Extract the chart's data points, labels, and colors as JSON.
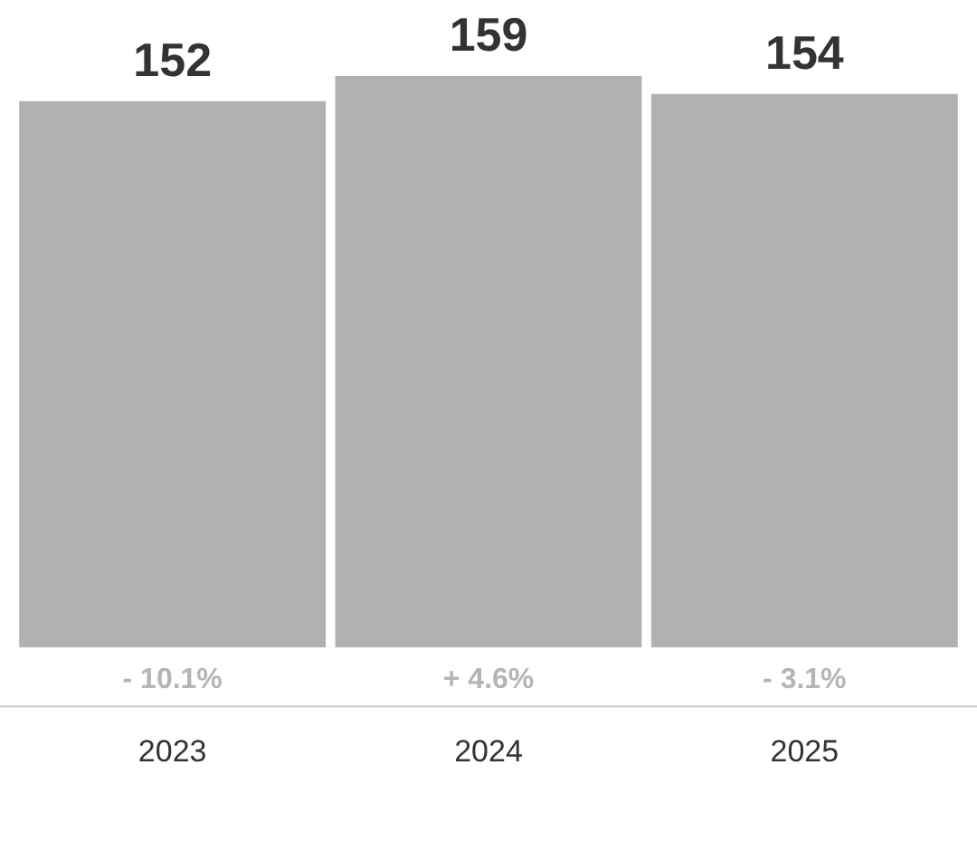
{
  "chart_data": {
    "type": "bar",
    "categories": [
      "2023",
      "2024",
      "2025"
    ],
    "values": [
      152,
      159,
      154
    ],
    "color": "#b0b1b0",
    "data_labels": true,
    "annotations": [
      "- 10.1%",
      "+ 4.6%",
      "- 3.1%"
    ]
  }
}
